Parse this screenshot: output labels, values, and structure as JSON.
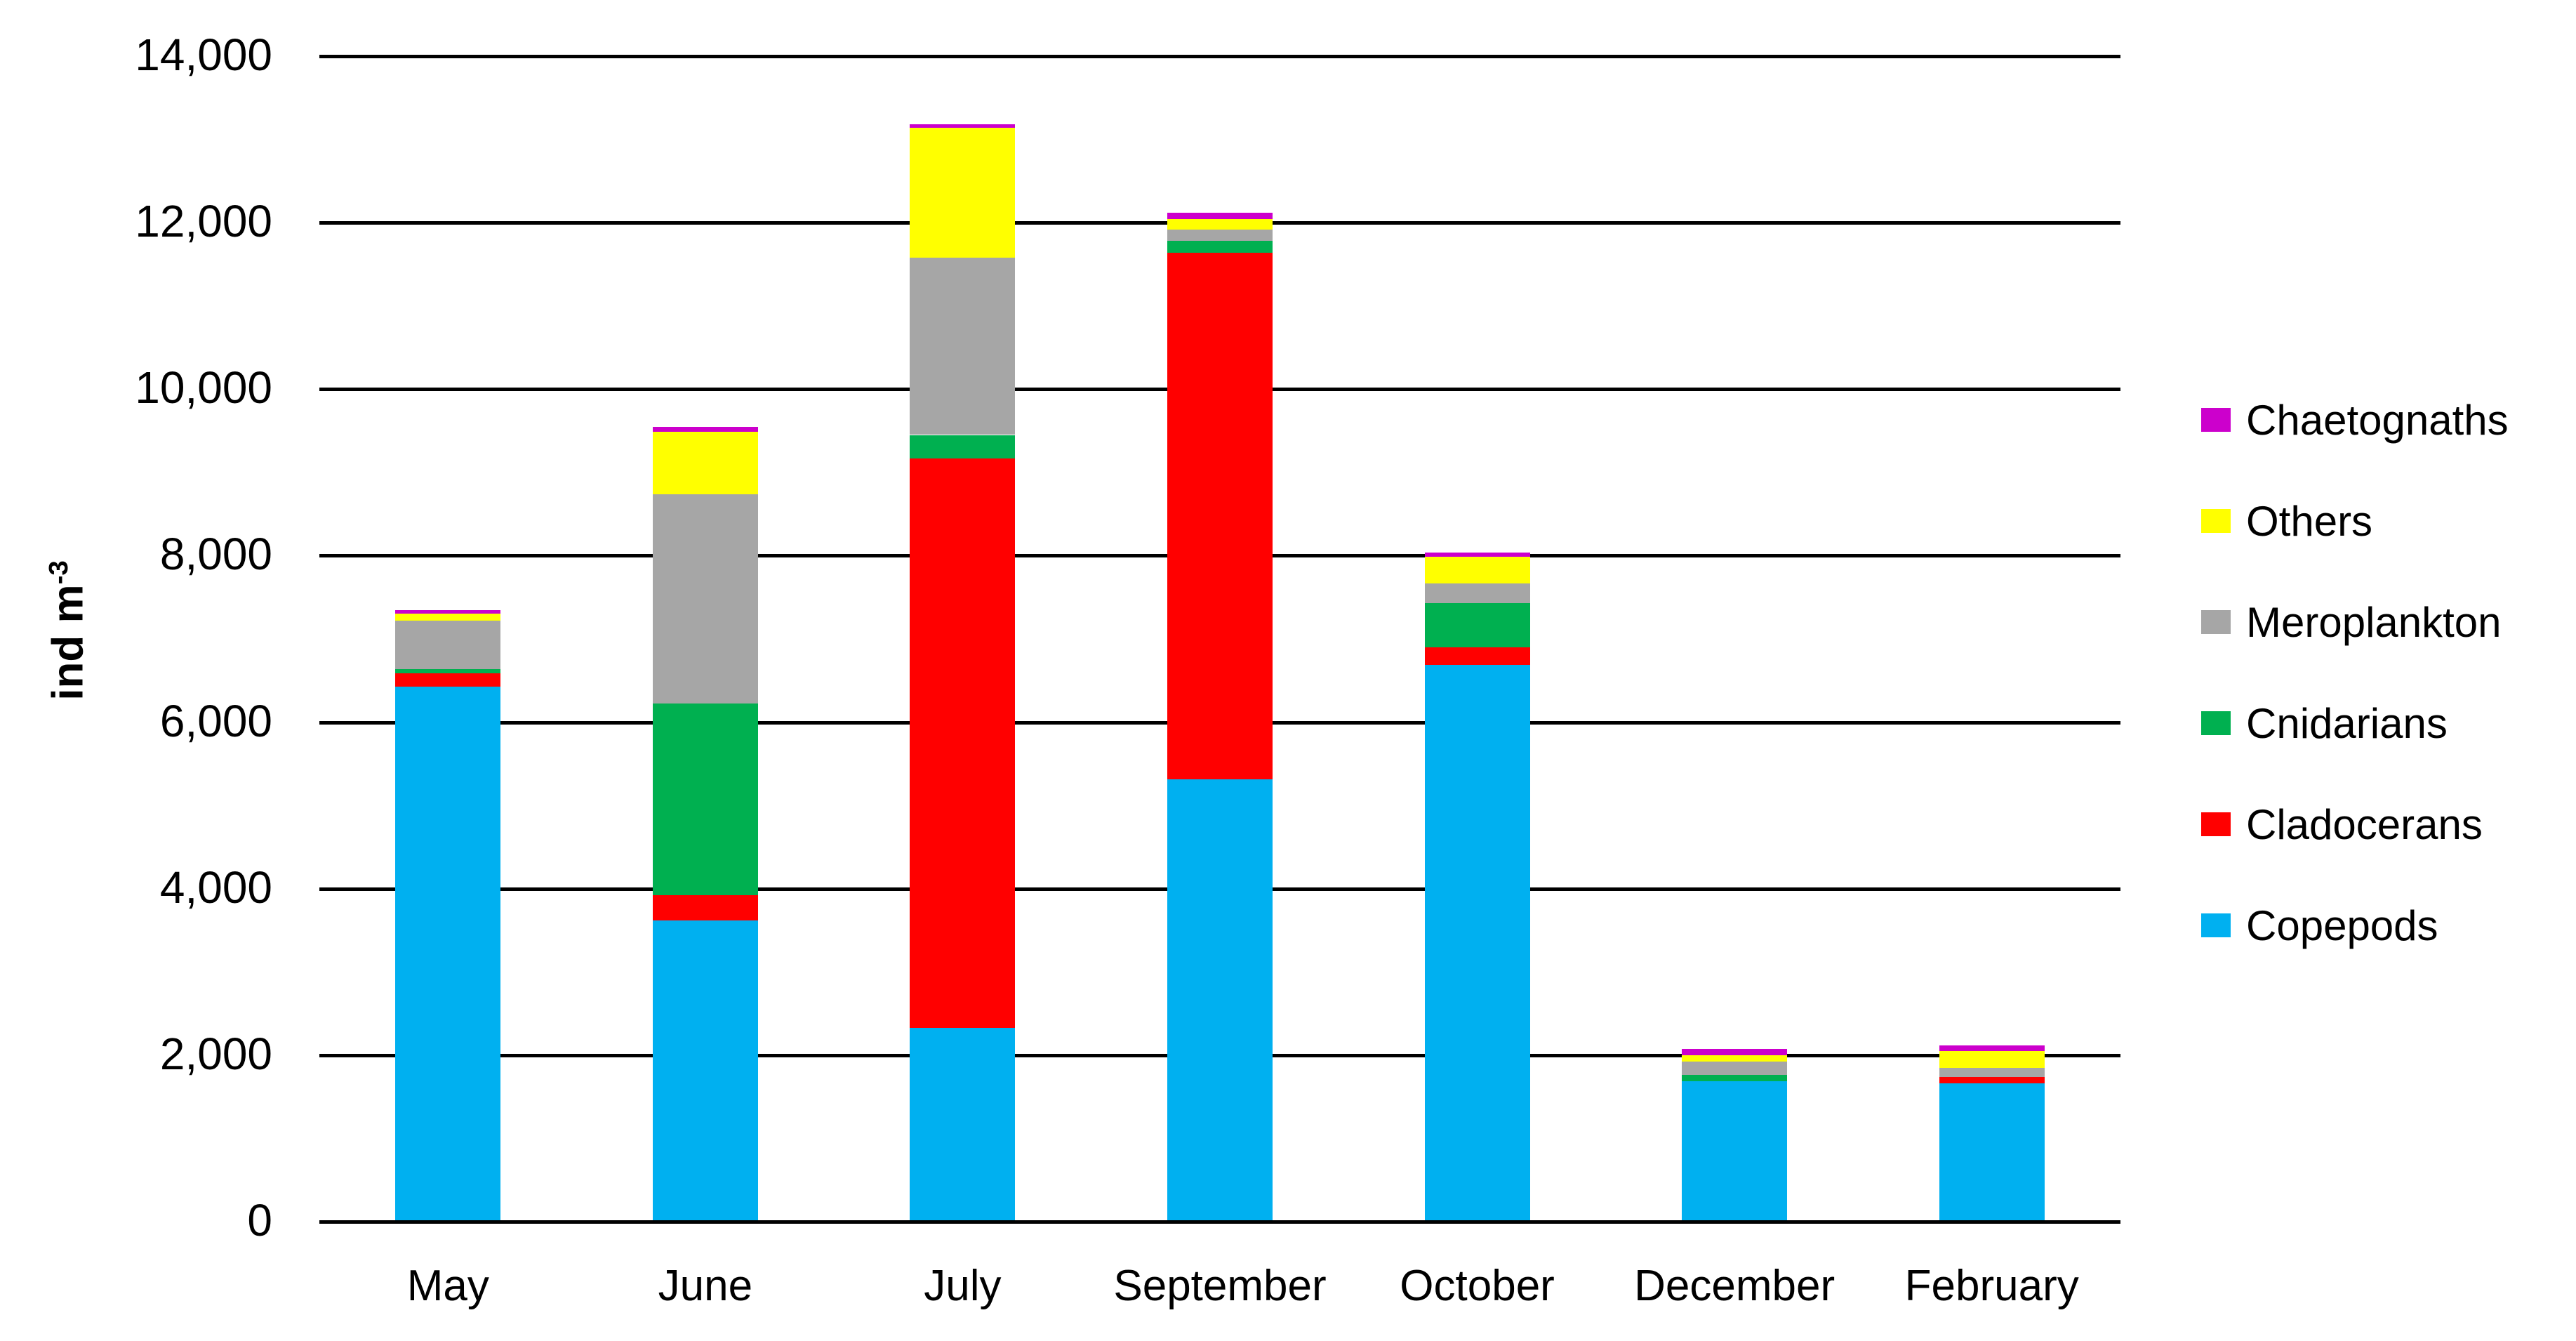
{
  "chart_data": {
    "type": "bar",
    "stacked": true,
    "title": "",
    "categories": [
      "May",
      "June",
      "July",
      "September",
      "October",
      "December",
      "February"
    ],
    "series": [
      {
        "name": "Copepods",
        "color": "#00B0F0",
        "values": [
          6430,
          3620,
          2330,
          5310,
          6690,
          1690,
          1660
        ]
      },
      {
        "name": "Cladocerans",
        "color": "#FF0000",
        "values": [
          160,
          300,
          6840,
          6330,
          210,
          0,
          80
        ]
      },
      {
        "name": "Cnidarians",
        "color": "#00B050",
        "values": [
          50,
          2300,
          280,
          140,
          530,
          75,
          0
        ]
      },
      {
        "name": "Meroplankton",
        "color": "#A6A6A6",
        "values": [
          580,
          2520,
          2130,
          140,
          240,
          160,
          105
        ]
      },
      {
        "name": "Others",
        "color": "#FFFF00",
        "values": [
          85,
          750,
          1560,
          120,
          320,
          70,
          205
        ]
      },
      {
        "name": "Chaetognaths",
        "color": "#CC00CC",
        "values": [
          40,
          55,
          45,
          80,
          50,
          80,
          65
        ]
      }
    ],
    "totals": [
      7345,
      9545,
      13185,
      12120,
      8040,
      2075,
      2115
    ],
    "xlabel": "",
    "ylabel_main": "ind m",
    "ylabel_sup": "-3",
    "ylim": [
      0,
      14000
    ],
    "ytick_values": [
      0,
      2000,
      4000,
      6000,
      8000,
      10000,
      12000,
      14000
    ],
    "ytick_labels": [
      "0",
      "2,000",
      "4,000",
      "6,000",
      "8,000",
      "10,000",
      "12,000",
      "14,000"
    ],
    "grid": "horizontal",
    "gridline_color": "#000000",
    "background_color": "#FFFFFF",
    "text_color": "#000000",
    "legend": {
      "position": "right",
      "order_top_to_bottom": [
        "Chaetognaths",
        "Others",
        "Meroplankton",
        "Cnidarians",
        "Cladocerans",
        "Copepods"
      ]
    }
  }
}
